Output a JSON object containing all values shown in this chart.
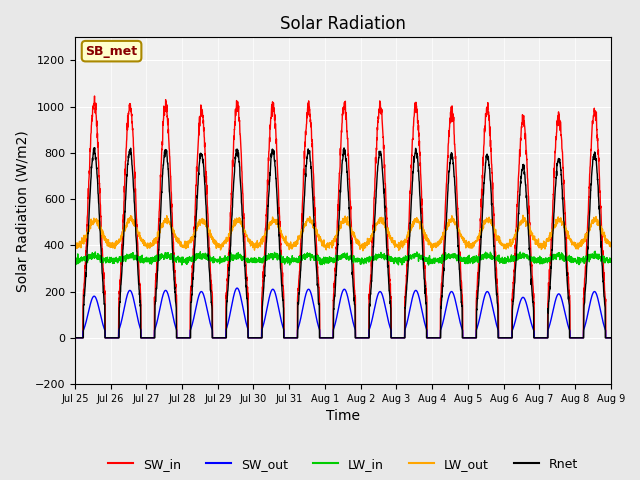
{
  "title": "Solar Radiation",
  "xlabel": "Time",
  "ylabel": "Solar Radiation (W/m2)",
  "ylim": [
    -200,
    1300
  ],
  "yticks": [
    -200,
    0,
    200,
    400,
    600,
    800,
    1000,
    1200
  ],
  "n_days": 15,
  "colors": {
    "SW_in": "#ff0000",
    "SW_out": "#0000ff",
    "LW_in": "#00cc00",
    "LW_out": "#ffa500",
    "Rnet": "#000000"
  },
  "annotation_text": "SB_met",
  "annotation_facecolor": "#ffffcc",
  "annotation_edgecolor": "#aa8800",
  "annotation_textcolor": "#880000",
  "background_color": "#e8e8e8",
  "plot_bg_color": "#f0f0f0",
  "x_tick_labels": [
    "Jul 25",
    "Jul 26",
    "Jul 27",
    "Jul 28",
    "Jul 29",
    "Jul 30",
    "Jul 31",
    "Aug 1",
    "Aug 2",
    "Aug 3",
    "Aug 4",
    "Aug 5",
    "Aug 6",
    "Aug 7",
    "Aug 8",
    "Aug 9"
  ],
  "SW_in_peaks": [
    1020,
    1000,
    1005,
    985,
    1000,
    1005,
    1000,
    1000,
    995,
    1005,
    980,
    990,
    945,
    960,
    985
  ],
  "SW_out_peaks": [
    180,
    205,
    205,
    200,
    215,
    210,
    210,
    210,
    200,
    205,
    200,
    200,
    175,
    190,
    200
  ],
  "LW_in_base": 335,
  "LW_out_base": 395,
  "Rnet_peaks": [
    810,
    810,
    810,
    800,
    810,
    810,
    810,
    810,
    800,
    810,
    790,
    790,
    740,
    775,
    800
  ]
}
